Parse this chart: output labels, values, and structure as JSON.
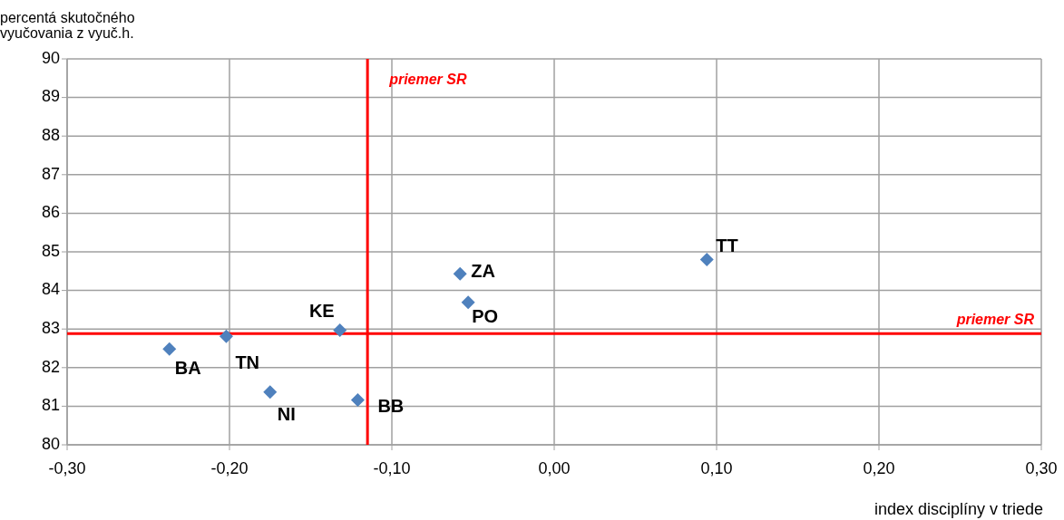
{
  "chart_data": {
    "type": "scatter",
    "ylabel": "percentá skutočného vyučovania z vyuč.h.",
    "xlabel": "index disciplíny v triede",
    "xlim": [
      -0.3,
      0.3
    ],
    "xticks": [
      {
        "value": -0.3,
        "label": "-0,30"
      },
      {
        "value": -0.2,
        "label": "-0,20"
      },
      {
        "value": -0.1,
        "label": "-0,10"
      },
      {
        "value": 0,
        "label": "0,00"
      },
      {
        "value": 0.1,
        "label": "0,10"
      },
      {
        "value": 0.2,
        "label": "0,20"
      },
      {
        "value": 0.3,
        "label": "0,30"
      }
    ],
    "ylim": [
      80,
      90
    ],
    "yticks": [
      80,
      81,
      82,
      83,
      84,
      85,
      86,
      87,
      88,
      89,
      90
    ],
    "grid": true,
    "marker": "diamond",
    "series": [
      {
        "name": "BA",
        "color": "#4f81bd",
        "x": [
          -0.237
        ],
        "values": [
          82.48
        ]
      },
      {
        "name": "TN",
        "color": "#4f81bd",
        "x": [
          -0.202
        ],
        "values": [
          82.81
        ]
      },
      {
        "name": "NI",
        "color": "#4f81bd",
        "x": [
          -0.175
        ],
        "values": [
          81.37
        ]
      },
      {
        "name": "KE",
        "color": "#4f81bd",
        "x": [
          -0.132
        ],
        "values": [
          82.97
        ]
      },
      {
        "name": "BB",
        "color": "#4f81bd",
        "x": [
          -0.121
        ],
        "values": [
          81.16
        ]
      },
      {
        "name": "ZA",
        "color": "#4f81bd",
        "x": [
          -0.058
        ],
        "values": [
          84.43
        ]
      },
      {
        "name": "PO",
        "color": "#4f81bd",
        "x": [
          -0.053
        ],
        "values": [
          83.69
        ]
      },
      {
        "name": "TT",
        "color": "#4f81bd",
        "x": [
          0.094
        ],
        "values": [
          84.8
        ]
      }
    ],
    "ref_lines": [
      {
        "axis": "x",
        "value": -0.115,
        "label": "priemer SR",
        "color": "#ff0000"
      },
      {
        "axis": "y",
        "value": 82.88,
        "label": "priemer SR",
        "color": "#ff0000"
      }
    ]
  }
}
